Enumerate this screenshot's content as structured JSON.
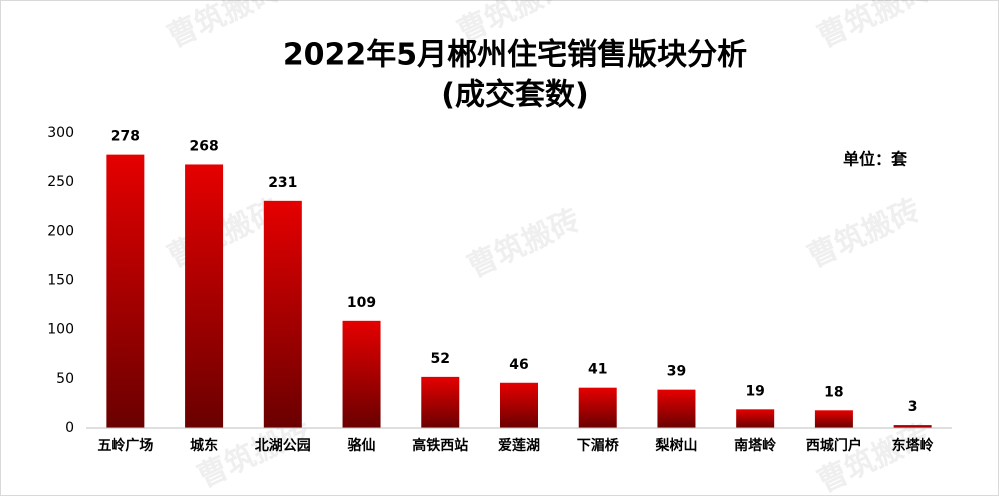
{
  "chart_data": {
    "type": "bar",
    "title": "2022年5月郴州住宅销售版块分析",
    "subtitle": "(成交套数)",
    "annotation": "单位：套",
    "watermark": "曹筑搬砖",
    "categories": [
      "五岭广场",
      "城东",
      "北湖公园",
      "骆仙",
      "高铁西站",
      "爱莲湖",
      "下湄桥",
      "梨树山",
      "南塔岭",
      "西城门户",
      "东塔岭"
    ],
    "values": [
      278,
      268,
      231,
      109,
      52,
      46,
      41,
      39,
      19,
      18,
      3
    ],
    "color": "#e50000",
    "ylim": [
      0,
      300
    ],
    "yticks": [
      0,
      50,
      100,
      150,
      200,
      250,
      300
    ],
    "grid": false
  }
}
